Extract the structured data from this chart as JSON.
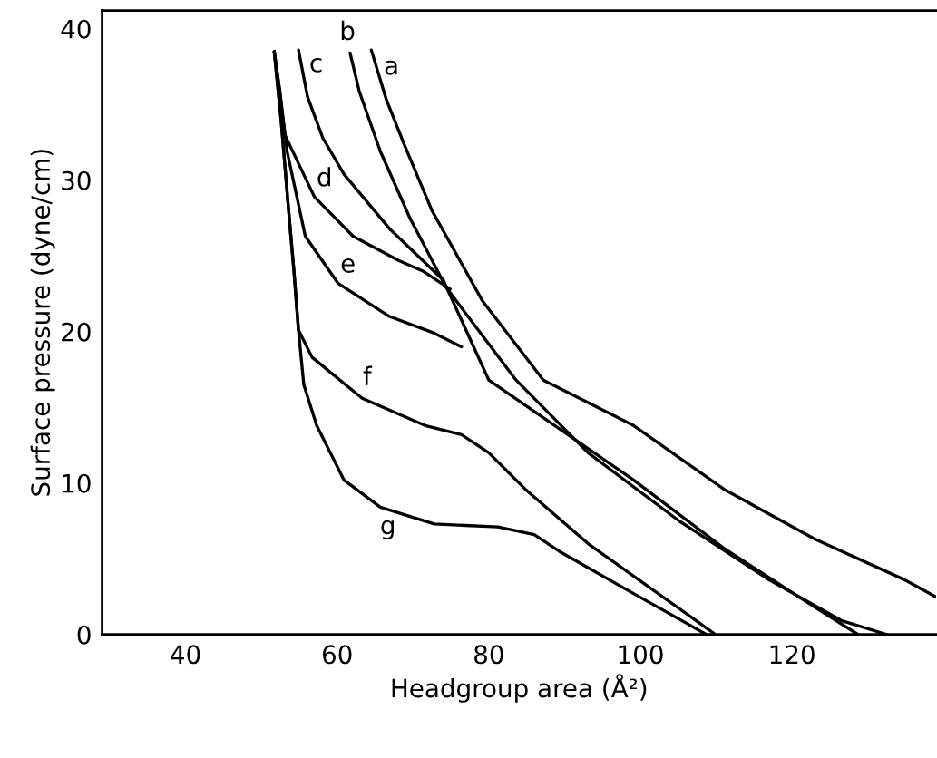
{
  "chart_data": {
    "type": "line",
    "xlabel": "Headgroup area (Å²)",
    "ylabel": "Surface pressure (dyne/cm)",
    "xlim": [
      29,
      139
    ],
    "ylim": [
      0,
      41.2
    ],
    "xticks": [
      40,
      60,
      80,
      100,
      120
    ],
    "yticks": [
      0,
      10,
      20,
      30,
      40
    ],
    "grid": false,
    "legend": false,
    "marker": "none",
    "line_style": "solid",
    "series": [
      {
        "name": "a",
        "color": "#000000",
        "x": [
          64.5,
          66.5,
          68.9,
          72.5,
          79.2,
          87.2,
          99.1,
          111,
          123,
          134.9,
          138.9
        ],
        "values": [
          38.6,
          35.3,
          32.3,
          28.0,
          22.0,
          16.8,
          13.8,
          9.6,
          6.3,
          3.6,
          2.5
        ]
      },
      {
        "name": "b",
        "color": "#000000",
        "x": [
          61.7,
          62.9,
          65.7,
          69.6,
          74.4,
          83.6,
          93.1,
          105.1,
          117,
          126.6,
          132.5
        ],
        "values": [
          38.4,
          35.9,
          31.9,
          27.5,
          22.9,
          16.8,
          12.0,
          7.5,
          3.6,
          0.9,
          0
        ]
      },
      {
        "name": "c",
        "color": "#000000",
        "x": [
          54.9,
          56.1,
          58.1,
          60.9,
          66.9,
          74.0,
          80,
          99.1,
          111,
          123,
          128.7
        ],
        "values": [
          38.6,
          35.5,
          32.8,
          30.4,
          26.8,
          23.4,
          16.8,
          10.2,
          5.7,
          1.8,
          0
        ]
      },
      {
        "name": "d",
        "color": "#000000",
        "x": [
          51.7,
          52.4,
          53.1,
          57.0,
          62.1,
          68.1,
          71.3,
          74.9
        ],
        "values": [
          38.5,
          36.0,
          33.0,
          28.9,
          26.3,
          24.7,
          24.0,
          22.8
        ]
      },
      {
        "name": "e",
        "color": "#000000",
        "x": [
          51.7,
          52.4,
          53.4,
          55.8,
          60.1,
          66.9,
          72.8,
          76.4
        ],
        "values": [
          38.5,
          36.0,
          31.9,
          26.3,
          23.2,
          21.0,
          19.9,
          19.0
        ]
      },
      {
        "name": "f",
        "color": "#000000",
        "x": [
          51.7,
          52.6,
          53.6,
          54.3,
          54.9,
          56.7,
          63.3,
          71.6,
          76.4,
          80,
          84.8,
          93.1,
          101.5,
          109.9
        ],
        "values": [
          38.5,
          34.0,
          28.0,
          24.0,
          20.1,
          18.3,
          15.6,
          13.8,
          13.2,
          12.0,
          9.6,
          6.0,
          3.0,
          0
        ]
      },
      {
        "name": "g",
        "color": "#000000",
        "x": [
          51.7,
          52.6,
          53.6,
          54.3,
          54.9,
          55.6,
          57.3,
          60.9,
          65.7,
          72.8,
          81.2,
          86,
          89.6,
          99.1,
          108.7
        ],
        "values": [
          38.5,
          34.0,
          28.0,
          24.0,
          20.1,
          16.5,
          13.8,
          10.2,
          8.4,
          7.3,
          7.1,
          6.6,
          5.4,
          2.7,
          0
        ]
      }
    ]
  }
}
